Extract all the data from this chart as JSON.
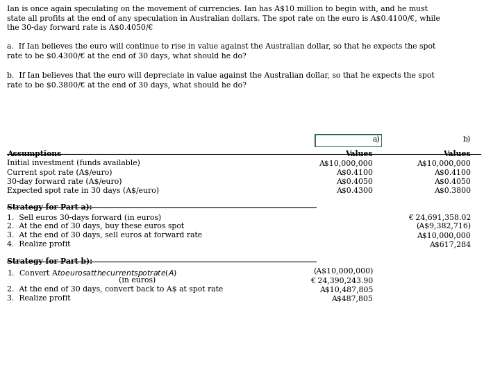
{
  "intro_text_lines": [
    "Ian is once again speculating on the movement of currencies. Ian has A$10 million to begin with, and he must",
    "state all profits at the end of any speculation in Australian dollars. The spot rate on the euro is A$0.4100/€, while",
    "the 30-day forward rate is A$0.4050/€"
  ],
  "question_a_lines": [
    "a.  If Ian believes the euro will continue to rise in value against the Australian dollar, so that he expects the spot",
    "rate to be $0.4300/€ at the end of 30 days, what should he do?"
  ],
  "question_b_lines": [
    "b.  If Ian believes that the euro will depreciate in value against the Australian dollar, so that he expects the spot",
    "rate to be $0.3800/€ at the end of 30 days, what should he do?"
  ],
  "col_header_a": "a)",
  "col_header_b": "b)",
  "col_subheader_a": "Values",
  "col_subheader_b": "Values",
  "assumptions_label": "Assumptions",
  "assumptions_rows": [
    [
      "Initial investment (funds available)",
      "A$10,000,000",
      "A$10,000,000"
    ],
    [
      "Current spot rate (A$/euro)",
      "A$0.4100",
      "A$0.4100"
    ],
    [
      "30-day forward rate (A$/euro)",
      "A$0.4050",
      "A$0.4050"
    ],
    [
      "Expected spot rate in 30 days (A$/euro)",
      "A$0.4300",
      "A$0.3800"
    ]
  ],
  "strategy_a_label": "Strategy for Part a):",
  "strategy_a_rows": [
    [
      "1.  Sell euros 30-days forward (in euros)",
      "",
      "€ 24,691,358.02"
    ],
    [
      "2.  At the end of 30 days, buy these euros spot",
      "",
      "(A$9,382,716)"
    ],
    [
      "3.  At the end of 30 days, sell euros at forward rate",
      "",
      "A$10,000,000"
    ],
    [
      "4.  Realize profit",
      "",
      "A$617,284"
    ]
  ],
  "strategy_b_label": "Strategy for Part b):",
  "strategy_b_rows": [
    [
      "1.  Convert A$ to euros at the current spot rate (A$)",
      "(A$10,000,000)",
      ""
    ],
    [
      "                                              (in euros)",
      "€ 24,390,243.90",
      ""
    ],
    [
      "2.  At the end of 30 days, convert back to A$ at spot rate",
      "A$10,487,805",
      ""
    ],
    [
      "3.  Realize profit",
      "A$487,805",
      ""
    ]
  ],
  "bg_color": "#ffffff",
  "text_color": "#000000",
  "box_color": "#1a6b3a",
  "font_size": 7.8,
  "font_family": "DejaVu Serif"
}
